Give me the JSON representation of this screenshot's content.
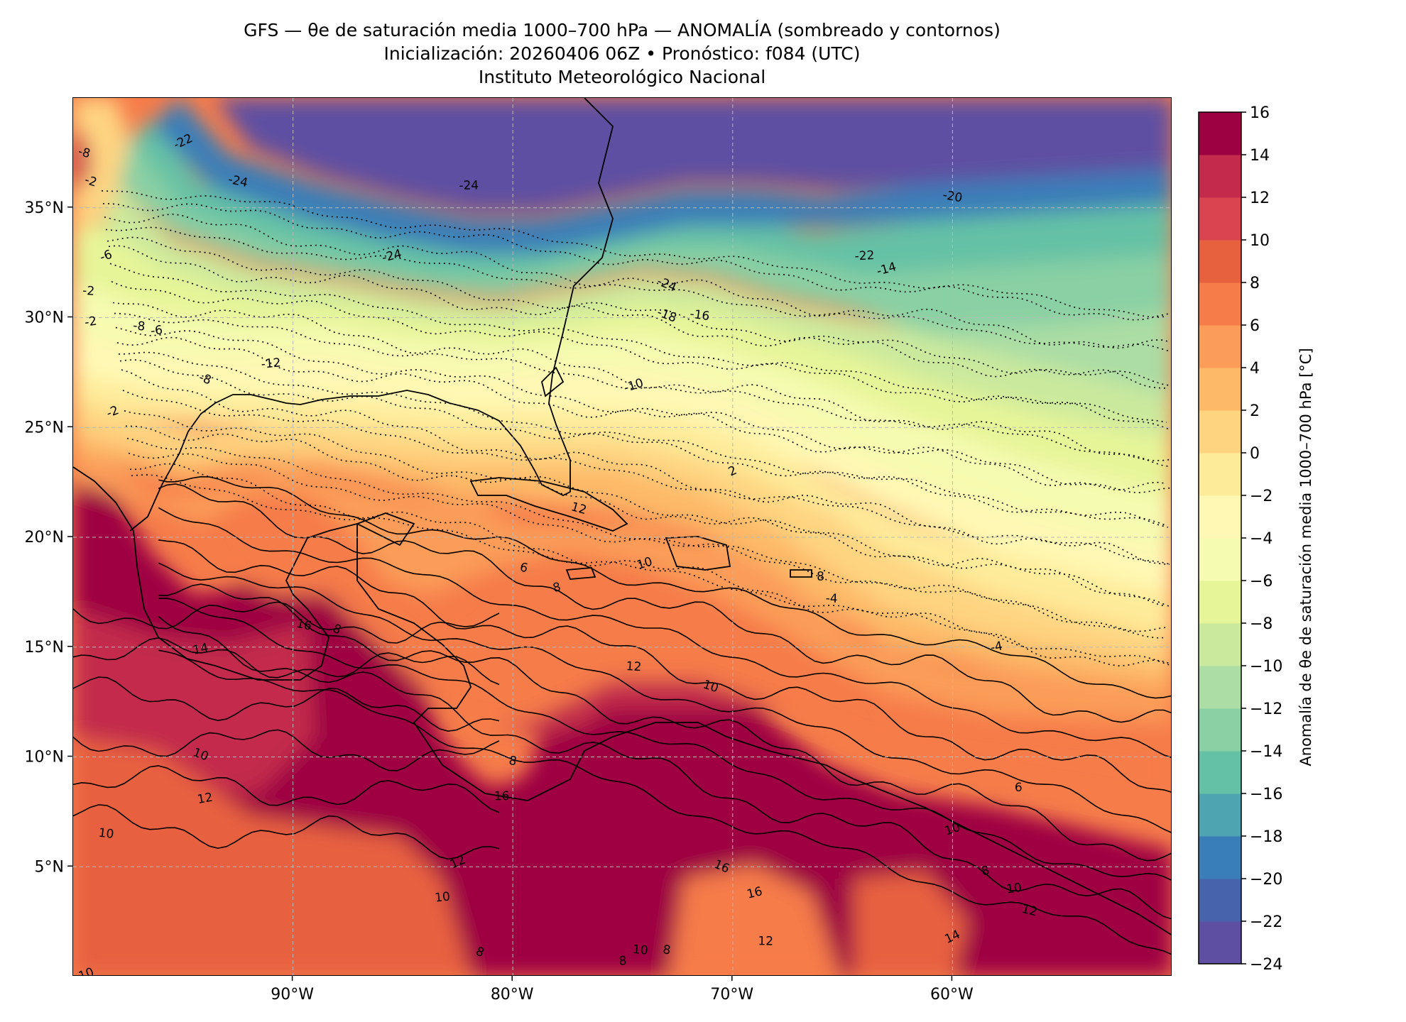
{
  "title": {
    "line1": "GFS — θe de saturación media 1000–700 hPa — ANOMALÍA (sombreado y contornos)",
    "line2": "Inicialización: 20260406 06Z   •   Pronóstico: f084 (UTC)",
    "line3": "Instituto Meteorológico Nacional"
  },
  "map": {
    "lon_range": [
      -100,
      -50
    ],
    "lat_range": [
      0,
      40
    ],
    "x_ticks": [
      {
        "value": -90,
        "label": "90°W"
      },
      {
        "value": -80,
        "label": "80°W"
      },
      {
        "value": -70,
        "label": "70°W"
      },
      {
        "value": -60,
        "label": "60°W"
      }
    ],
    "y_ticks": [
      {
        "value": 35,
        "label": "35°N"
      },
      {
        "value": 30,
        "label": "30°N"
      },
      {
        "value": 25,
        "label": "25°N"
      },
      {
        "value": 20,
        "label": "20°N"
      },
      {
        "value": 15,
        "label": "15°N"
      },
      {
        "value": 10,
        "label": "10°N"
      },
      {
        "value": 5,
        "label": "5°N"
      }
    ],
    "grid": true,
    "contour_labels": [
      {
        "text": "-22",
        "lon": -95,
        "lat": 38
      },
      {
        "text": "-24",
        "lon": -92.5,
        "lat": 36.2
      },
      {
        "text": "-24",
        "lon": -82,
        "lat": 36
      },
      {
        "text": "-24",
        "lon": -85.5,
        "lat": 32.8
      },
      {
        "text": "-24",
        "lon": -73,
        "lat": 31.5
      },
      {
        "text": "-20",
        "lon": -60,
        "lat": 35.5
      },
      {
        "text": "-22",
        "lon": -64,
        "lat": 32.8
      },
      {
        "text": "-14",
        "lon": -63,
        "lat": 32.2
      },
      {
        "text": "-18",
        "lon": -73,
        "lat": 30.1
      },
      {
        "text": "-16",
        "lon": -71.5,
        "lat": 30.1
      },
      {
        "text": "-12",
        "lon": -91,
        "lat": 27.9
      },
      {
        "text": "-10",
        "lon": -74.5,
        "lat": 26.9
      },
      {
        "text": "-8",
        "lon": -94,
        "lat": 27.2
      },
      {
        "text": "-8",
        "lon": -97,
        "lat": 29.6
      },
      {
        "text": "-6",
        "lon": -96.2,
        "lat": 29.4
      },
      {
        "text": "-6",
        "lon": -98.5,
        "lat": 32.8
      },
      {
        "text": "-2",
        "lon": -99.2,
        "lat": 36.2
      },
      {
        "text": "-2",
        "lon": -99.3,
        "lat": 31.2
      },
      {
        "text": "-2",
        "lon": -99.2,
        "lat": 29.8
      },
      {
        "text": "-2",
        "lon": -98.2,
        "lat": 25.7
      },
      {
        "text": "-8",
        "lon": -99.5,
        "lat": 37.5
      },
      {
        "text": "-4",
        "lon": -65.5,
        "lat": 17.2
      },
      {
        "text": "-4",
        "lon": -58,
        "lat": 15
      },
      {
        "text": "2",
        "lon": -70,
        "lat": 23
      },
      {
        "text": "6",
        "lon": -79.5,
        "lat": 18.6
      },
      {
        "text": "6",
        "lon": -57,
        "lat": 8.6
      },
      {
        "text": "8",
        "lon": -78,
        "lat": 17.7
      },
      {
        "text": "8",
        "lon": -88,
        "lat": 15.8
      },
      {
        "text": "8",
        "lon": -80,
        "lat": 9.8
      },
      {
        "text": "8",
        "lon": -66,
        "lat": 18.2
      },
      {
        "text": "8",
        "lon": -58.5,
        "lat": 4.8
      },
      {
        "text": "8",
        "lon": -81.5,
        "lat": 1.1
      },
      {
        "text": "8",
        "lon": -73,
        "lat": 1.2
      },
      {
        "text": "8",
        "lon": -75,
        "lat": 0.7
      },
      {
        "text": "10",
        "lon": -74,
        "lat": 18.8
      },
      {
        "text": "10",
        "lon": -94.2,
        "lat": 10.1
      },
      {
        "text": "10",
        "lon": -98.5,
        "lat": 6.5
      },
      {
        "text": "10",
        "lon": -83.2,
        "lat": 3.6
      },
      {
        "text": "10",
        "lon": -60,
        "lat": 6.7
      },
      {
        "text": "10",
        "lon": -71,
        "lat": 13.2
      },
      {
        "text": "10",
        "lon": -74.2,
        "lat": 1.2
      },
      {
        "text": "10",
        "lon": -57.2,
        "lat": 4
      },
      {
        "text": "10",
        "lon": -99.4,
        "lat": 0.1
      },
      {
        "text": "12",
        "lon": -77,
        "lat": 21.3
      },
      {
        "text": "12",
        "lon": -74.5,
        "lat": 14.1
      },
      {
        "text": "12",
        "lon": -94,
        "lat": 8.1
      },
      {
        "text": "12",
        "lon": -82.5,
        "lat": 5.2
      },
      {
        "text": "12",
        "lon": -56.5,
        "lat": 3
      },
      {
        "text": "12",
        "lon": -68.5,
        "lat": 1.6
      },
      {
        "text": "14",
        "lon": -94.2,
        "lat": 14.9
      },
      {
        "text": "14",
        "lon": -60,
        "lat": 1.8
      },
      {
        "text": "16",
        "lon": -89.5,
        "lat": 16
      },
      {
        "text": "16",
        "lon": -80.5,
        "lat": 8.2
      },
      {
        "text": "16",
        "lon": -69,
        "lat": 3.8
      },
      {
        "text": "16",
        "lon": -70.5,
        "lat": 5
      }
    ]
  },
  "colorbar": {
    "label": "Anomalía de θe de saturación media 1000–700 hPa [°C]",
    "min": -24,
    "max": 16,
    "step": 2,
    "tick_labels": [
      "16",
      "14",
      "12",
      "10",
      "8",
      "6",
      "4",
      "2",
      "0",
      "−2",
      "−4",
      "−6",
      "−8",
      "−10",
      "−12",
      "−14",
      "−16",
      "−18",
      "−20",
      "−22",
      "−24"
    ],
    "colors": [
      "#5e4fa2",
      "#4764ab",
      "#3a7eb8",
      "#4ea4b0",
      "#65c1a5",
      "#89d0a4",
      "#abdda4",
      "#cbe99d",
      "#e6f598",
      "#f5fbb0",
      "#fff8b4",
      "#feeb9a",
      "#fed481",
      "#fdb967",
      "#fb9c58",
      "#f67c4a",
      "#e7613f",
      "#d94450",
      "#c32a4c",
      "#9e0142"
    ]
  }
}
